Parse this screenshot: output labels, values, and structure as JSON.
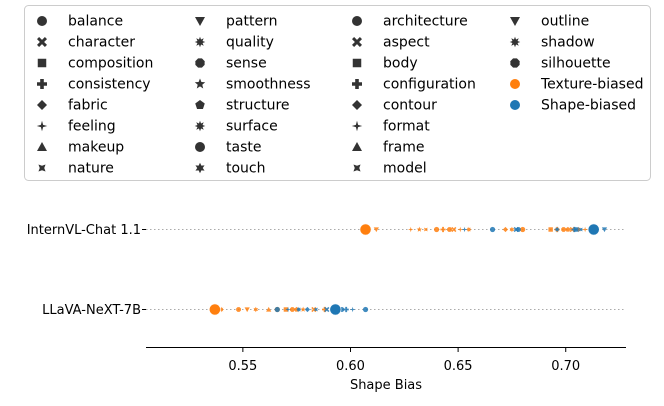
{
  "chart_data": {
    "type": "scatter",
    "xlabel": "Shape Bias",
    "ylabel": "",
    "xlim": [
      0.505,
      0.728
    ],
    "x_ticks": [
      "0.55",
      "0.60",
      "0.65",
      "0.70"
    ],
    "x_tick_values": [
      0.55,
      0.6,
      0.65,
      0.7
    ],
    "categories": [
      "InternVL-Chat 1.1",
      "LLaVA-NeXT-7B"
    ],
    "legend_position": "top",
    "legend": [
      {
        "label": "balance",
        "marker": "circle"
      },
      {
        "label": "character",
        "marker": "x"
      },
      {
        "label": "composition",
        "marker": "square"
      },
      {
        "label": "consistency",
        "marker": "plus"
      },
      {
        "label": "fabric",
        "marker": "diamond"
      },
      {
        "label": "feeling",
        "marker": "thin-diamond"
      },
      {
        "label": "makeup",
        "marker": "triangle-up"
      },
      {
        "label": "nature",
        "marker": "tri-x"
      },
      {
        "label": "pattern",
        "marker": "triangle-down"
      },
      {
        "label": "quality",
        "marker": "star8"
      },
      {
        "label": "sense",
        "marker": "octagon"
      },
      {
        "label": "smoothness",
        "marker": "star"
      },
      {
        "label": "structure",
        "marker": "pentagon"
      },
      {
        "label": "surface",
        "marker": "star8"
      },
      {
        "label": "taste",
        "marker": "circle"
      },
      {
        "label": "touch",
        "marker": "star6"
      },
      {
        "label": "architecture",
        "marker": "circle"
      },
      {
        "label": "aspect",
        "marker": "x"
      },
      {
        "label": "body",
        "marker": "square"
      },
      {
        "label": "configuration",
        "marker": "plus"
      },
      {
        "label": "contour",
        "marker": "diamond"
      },
      {
        "label": "format",
        "marker": "thin-diamond"
      },
      {
        "label": "frame",
        "marker": "triangle-up"
      },
      {
        "label": "model",
        "marker": "tri-x"
      },
      {
        "label": "outline",
        "marker": "triangle-down"
      },
      {
        "label": "shadow",
        "marker": "star8"
      },
      {
        "label": "silhouette",
        "marker": "octagon"
      },
      {
        "label": "Texture-biased",
        "marker": "circle",
        "color": "#ff7f0e"
      },
      {
        "label": "Shape-biased",
        "marker": "circle",
        "color": "#1f77b4"
      }
    ],
    "colors": {
      "texture": "#ff7f0e",
      "shape": "#1f77b4"
    },
    "series": [
      {
        "name": "InternVL-Chat 1.1",
        "texture_biased": [
          {
            "x": 0.607,
            "marker": "circle",
            "big": true
          },
          {
            "x": 0.612,
            "marker": "triangle-down"
          },
          {
            "x": 0.628,
            "marker": "thin-diamond"
          },
          {
            "x": 0.632,
            "marker": "star"
          },
          {
            "x": 0.635,
            "marker": "tri-x"
          },
          {
            "x": 0.64,
            "marker": "circle"
          },
          {
            "x": 0.643,
            "marker": "plus"
          },
          {
            "x": 0.646,
            "marker": "octagon"
          },
          {
            "x": 0.648,
            "marker": "x"
          },
          {
            "x": 0.651,
            "marker": "thin-diamond"
          },
          {
            "x": 0.655,
            "marker": "star8"
          },
          {
            "x": 0.672,
            "marker": "diamond"
          },
          {
            "x": 0.675,
            "marker": "star6"
          },
          {
            "x": 0.68,
            "marker": "circle"
          },
          {
            "x": 0.693,
            "marker": "square"
          },
          {
            "x": 0.696,
            "marker": "plus"
          },
          {
            "x": 0.699,
            "marker": "octagon"
          },
          {
            "x": 0.701,
            "marker": "pentagon"
          },
          {
            "x": 0.703,
            "marker": "x"
          },
          {
            "x": 0.706,
            "marker": "star8"
          },
          {
            "x": 0.709,
            "marker": "thin-diamond"
          }
        ],
        "shape_biased": [
          {
            "x": 0.653,
            "marker": "thin-diamond"
          },
          {
            "x": 0.666,
            "marker": "circle"
          },
          {
            "x": 0.677,
            "marker": "x"
          },
          {
            "x": 0.678,
            "marker": "octagon"
          },
          {
            "x": 0.696,
            "marker": "star8"
          },
          {
            "x": 0.704,
            "marker": "plus"
          },
          {
            "x": 0.705,
            "marker": "square"
          },
          {
            "x": 0.707,
            "marker": "tri-x"
          },
          {
            "x": 0.713,
            "marker": "circle",
            "big": true
          },
          {
            "x": 0.718,
            "marker": "triangle-down"
          }
        ]
      },
      {
        "name": "LLaVA-NeXT-7B",
        "texture_biased": [
          {
            "x": 0.537,
            "marker": "circle",
            "big": true
          },
          {
            "x": 0.54,
            "marker": "star8"
          },
          {
            "x": 0.548,
            "marker": "octagon"
          },
          {
            "x": 0.552,
            "marker": "triangle-down"
          },
          {
            "x": 0.556,
            "marker": "star6"
          },
          {
            "x": 0.562,
            "marker": "triangle-up"
          },
          {
            "x": 0.566,
            "marker": "circle"
          },
          {
            "x": 0.57,
            "marker": "square"
          },
          {
            "x": 0.573,
            "marker": "octagon"
          },
          {
            "x": 0.575,
            "marker": "pentagon"
          },
          {
            "x": 0.578,
            "marker": "star"
          },
          {
            "x": 0.583,
            "marker": "x"
          },
          {
            "x": 0.588,
            "marker": "plus"
          },
          {
            "x": 0.592,
            "marker": "octagon"
          },
          {
            "x": 0.595,
            "marker": "thin-diamond"
          }
        ],
        "shape_biased": [
          {
            "x": 0.566,
            "marker": "circle"
          },
          {
            "x": 0.571,
            "marker": "thin-diamond"
          },
          {
            "x": 0.576,
            "marker": "star8"
          },
          {
            "x": 0.58,
            "marker": "diamond"
          },
          {
            "x": 0.584,
            "marker": "tri-x"
          },
          {
            "x": 0.589,
            "marker": "x"
          },
          {
            "x": 0.593,
            "marker": "circle",
            "big": true
          },
          {
            "x": 0.596,
            "marker": "octagon"
          },
          {
            "x": 0.598,
            "marker": "plus"
          },
          {
            "x": 0.601,
            "marker": "thin-diamond"
          },
          {
            "x": 0.607,
            "marker": "circle"
          }
        ]
      }
    ]
  }
}
